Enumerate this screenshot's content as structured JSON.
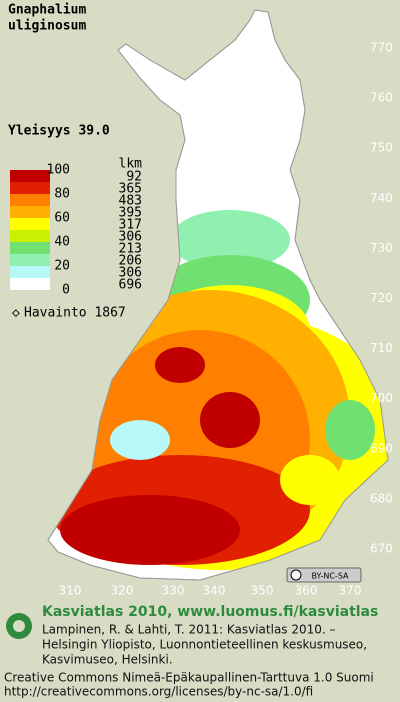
{
  "title": [
    "Gnaphalium",
    "uliginosum"
  ],
  "frequency": "Yleisyys  39.0",
  "legend": {
    "scale": [
      100,
      80,
      60,
      40,
      20,
      0
    ],
    "count_header": "lkm",
    "counts": [
      92,
      365,
      483,
      395,
      317,
      306,
      213,
      206,
      306,
      696
    ]
  },
  "observations": "Havainto 1867",
  "axes": {
    "north": [
      770,
      760,
      750,
      740,
      730,
      720,
      710,
      700,
      690,
      680,
      670
    ],
    "east": [
      310,
      320,
      330,
      340,
      350,
      360,
      370
    ]
  },
  "badge": "BY-NC-SA",
  "footer": {
    "heading": "Kasviatlas 2010, www.luomus.fi/kasviatlas",
    "citation": [
      "Lampinen, R. & Lahti, T. 2011: Kasviatlas 2010. –",
      "Helsingin Yliopisto, Luonnontieteellinen keskusmuseo,",
      "Kasvimuseo, Helsinki."
    ],
    "license": [
      "Creative Commons Nimeä-Epäkaupallinen-Tarttuva 1.0 Suomi",
      "http://creativecommons.org/licenses/by-nc-sa/1.0/fi"
    ]
  }
}
